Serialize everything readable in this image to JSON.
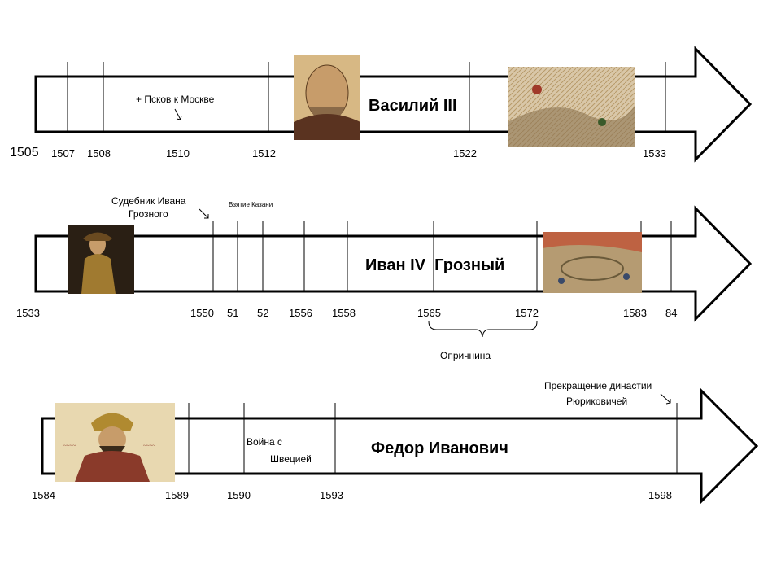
{
  "timelines": [
    {
      "ruler": "Василий III",
      "start_year": "1505",
      "years": [
        "1507",
        "1508",
        "1510",
        "1512",
        "1522",
        "1533"
      ],
      "annotations": [
        "+ Псков к Москве"
      ],
      "images": [
        "portrait-vasily-iii",
        "battle-painting"
      ]
    },
    {
      "ruler": "Иван IV  Грозный",
      "years": [
        "1533",
        "1550",
        "51",
        "52",
        "1556",
        "1558",
        "1565",
        "1572",
        "1583",
        "84"
      ],
      "annotations": [
        "Судебник Ивана",
        "Грозного",
        "Взятие Казани",
        "Опричнина"
      ],
      "images": [
        "portrait-ivan-iv",
        "oprichnina-painting"
      ]
    },
    {
      "ruler": "Федор Иванович",
      "years": [
        "1584",
        "1589",
        "1590",
        "1593",
        "1598"
      ],
      "annotations": [
        "Война с",
        "Швецией",
        "Прекращение династии",
        "Рюриковичей"
      ],
      "images": [
        "portrait-fyodor-ivanovich"
      ]
    }
  ],
  "colors": {
    "line": "#000000",
    "background": "#ffffff"
  }
}
